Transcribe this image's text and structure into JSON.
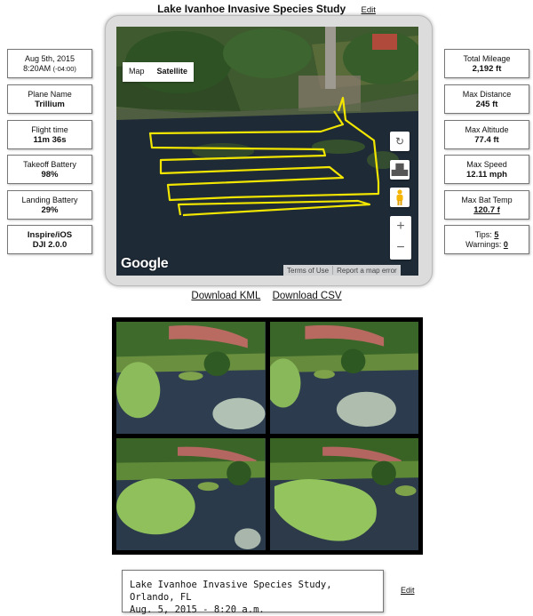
{
  "header": {
    "title": "Lake Ivanhoe Invasive Species Study",
    "edit_label": "Edit"
  },
  "left_stats": {
    "date": {
      "line1": "Aug 5th, 2015",
      "time": "8:20AM",
      "tz": "(-04:00)"
    },
    "plane": {
      "label": "Plane Name",
      "value": "Trillium"
    },
    "flight_time": {
      "label": "Flight time",
      "value": "11m 36s"
    },
    "takeoff_battery": {
      "label": "Takeoff Battery",
      "value": "98%"
    },
    "landing_battery": {
      "label": "Landing Battery",
      "value": "29%"
    },
    "device": {
      "line1": "Inspire/iOS",
      "line2": "DJI 2.0.0"
    }
  },
  "right_stats": {
    "total_mileage": {
      "label": "Total Mileage",
      "value": "2,192 ft"
    },
    "max_distance": {
      "label": "Max Distance",
      "value": "245 ft"
    },
    "max_altitude": {
      "label": "Max Altitude",
      "value": "77.4 ft"
    },
    "max_speed": {
      "label": "Max Speed",
      "value": "12.11 mph"
    },
    "max_bat_temp": {
      "label": "Max Bat Temp",
      "value": "120.7 f"
    },
    "tips": {
      "label": "Tips:",
      "value": "5"
    },
    "warnings": {
      "label": "Warnings:",
      "value": "0"
    }
  },
  "map": {
    "type_map": "Map",
    "type_satellite": "Satellite",
    "selected": "Satellite",
    "logo": "Google",
    "terms": "Terms of Use",
    "report": "Report a map error",
    "zoom_in": "+",
    "zoom_out": "−",
    "track_color": "#f2e600",
    "icons": [
      "rotate-icon",
      "tilt-icon",
      "pegman-icon"
    ]
  },
  "downloads": {
    "kml": "Download KML",
    "csv": "Download CSV"
  },
  "caption": {
    "line1": "Lake Ivanhoe Invasive Species Study, Orlando, FL",
    "line2": "Aug. 5, 2015 - 8:20 a.m.",
    "edit_label": "Edit"
  }
}
